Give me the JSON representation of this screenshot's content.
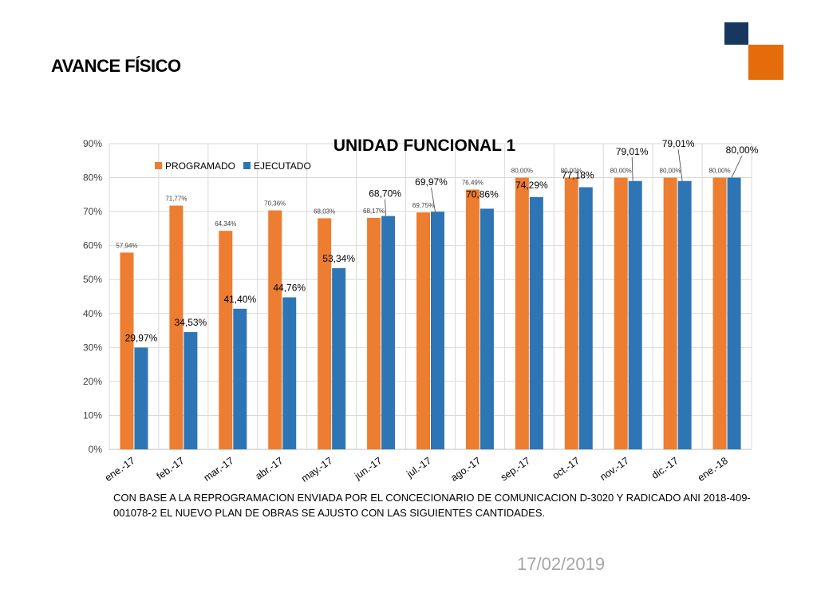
{
  "slide": {
    "title": "AVANCE FÍSICO",
    "caption": "CON BASE A LA REPROGRAMACION ENVIADA POR EL CONCECIONARIO DE COMUNICACION D-3020 Y RADICADO ANI  2018-409-001078-2 EL NUEVO PLAN  DE OBRAS SE AJUSTO CON LAS SIGUIENTES CANTIDADES.",
    "date": "17/02/2019"
  },
  "colors": {
    "accent_dark": "#17375e",
    "accent_orange": "#e46c0a",
    "programado": "#ed7d31",
    "ejecutado": "#2e75b6"
  },
  "chart_data": {
    "type": "bar",
    "title": "UNIDAD FUNCIONAL 1",
    "xlabel": "",
    "ylabel": "",
    "ylim": [
      0,
      90
    ],
    "yticks": [
      "0%",
      "10%",
      "20%",
      "30%",
      "40%",
      "50%",
      "60%",
      "70%",
      "80%",
      "90%"
    ],
    "grid": true,
    "legend_position": "top-left",
    "categories": [
      "ene.-17",
      "feb.-17",
      "mar.-17",
      "abr.-17",
      "may.-17",
      "jun.-17",
      "jul.-17",
      "ago.-17",
      "sep.-17",
      "oct.-17",
      "nov.-17",
      "dic.-17",
      "ene.-18"
    ],
    "series": [
      {
        "name": "PROGRAMADO",
        "color": "#ed7d31",
        "values": [
          57.94,
          71.77,
          64.34,
          70.36,
          68.03,
          68.17,
          69.75,
          76.49,
          80.0,
          80.0,
          80.0,
          80.0,
          80.0
        ],
        "labels": [
          "57,94%",
          "71,77%",
          "64,34%",
          "70,36%",
          "68,03%",
          "68,17%",
          "69,75%",
          "76,49%",
          "80,00%",
          "80,00%",
          "80,00%",
          "80,00%",
          "80,00%"
        ]
      },
      {
        "name": "EJECUTADO",
        "color": "#2e75b6",
        "values": [
          29.97,
          34.53,
          41.4,
          44.76,
          53.34,
          68.7,
          69.97,
          70.86,
          74.29,
          77.18,
          79.01,
          79.01,
          80.0
        ],
        "labels": [
          "29,97%",
          "34,53%",
          "41,40%",
          "44,76%",
          "53,34%",
          "68,70%",
          "69,97%",
          "70,86%",
          "74,29%",
          "77,18%",
          "79,01%",
          "79,01%",
          "80,00%"
        ]
      }
    ]
  }
}
